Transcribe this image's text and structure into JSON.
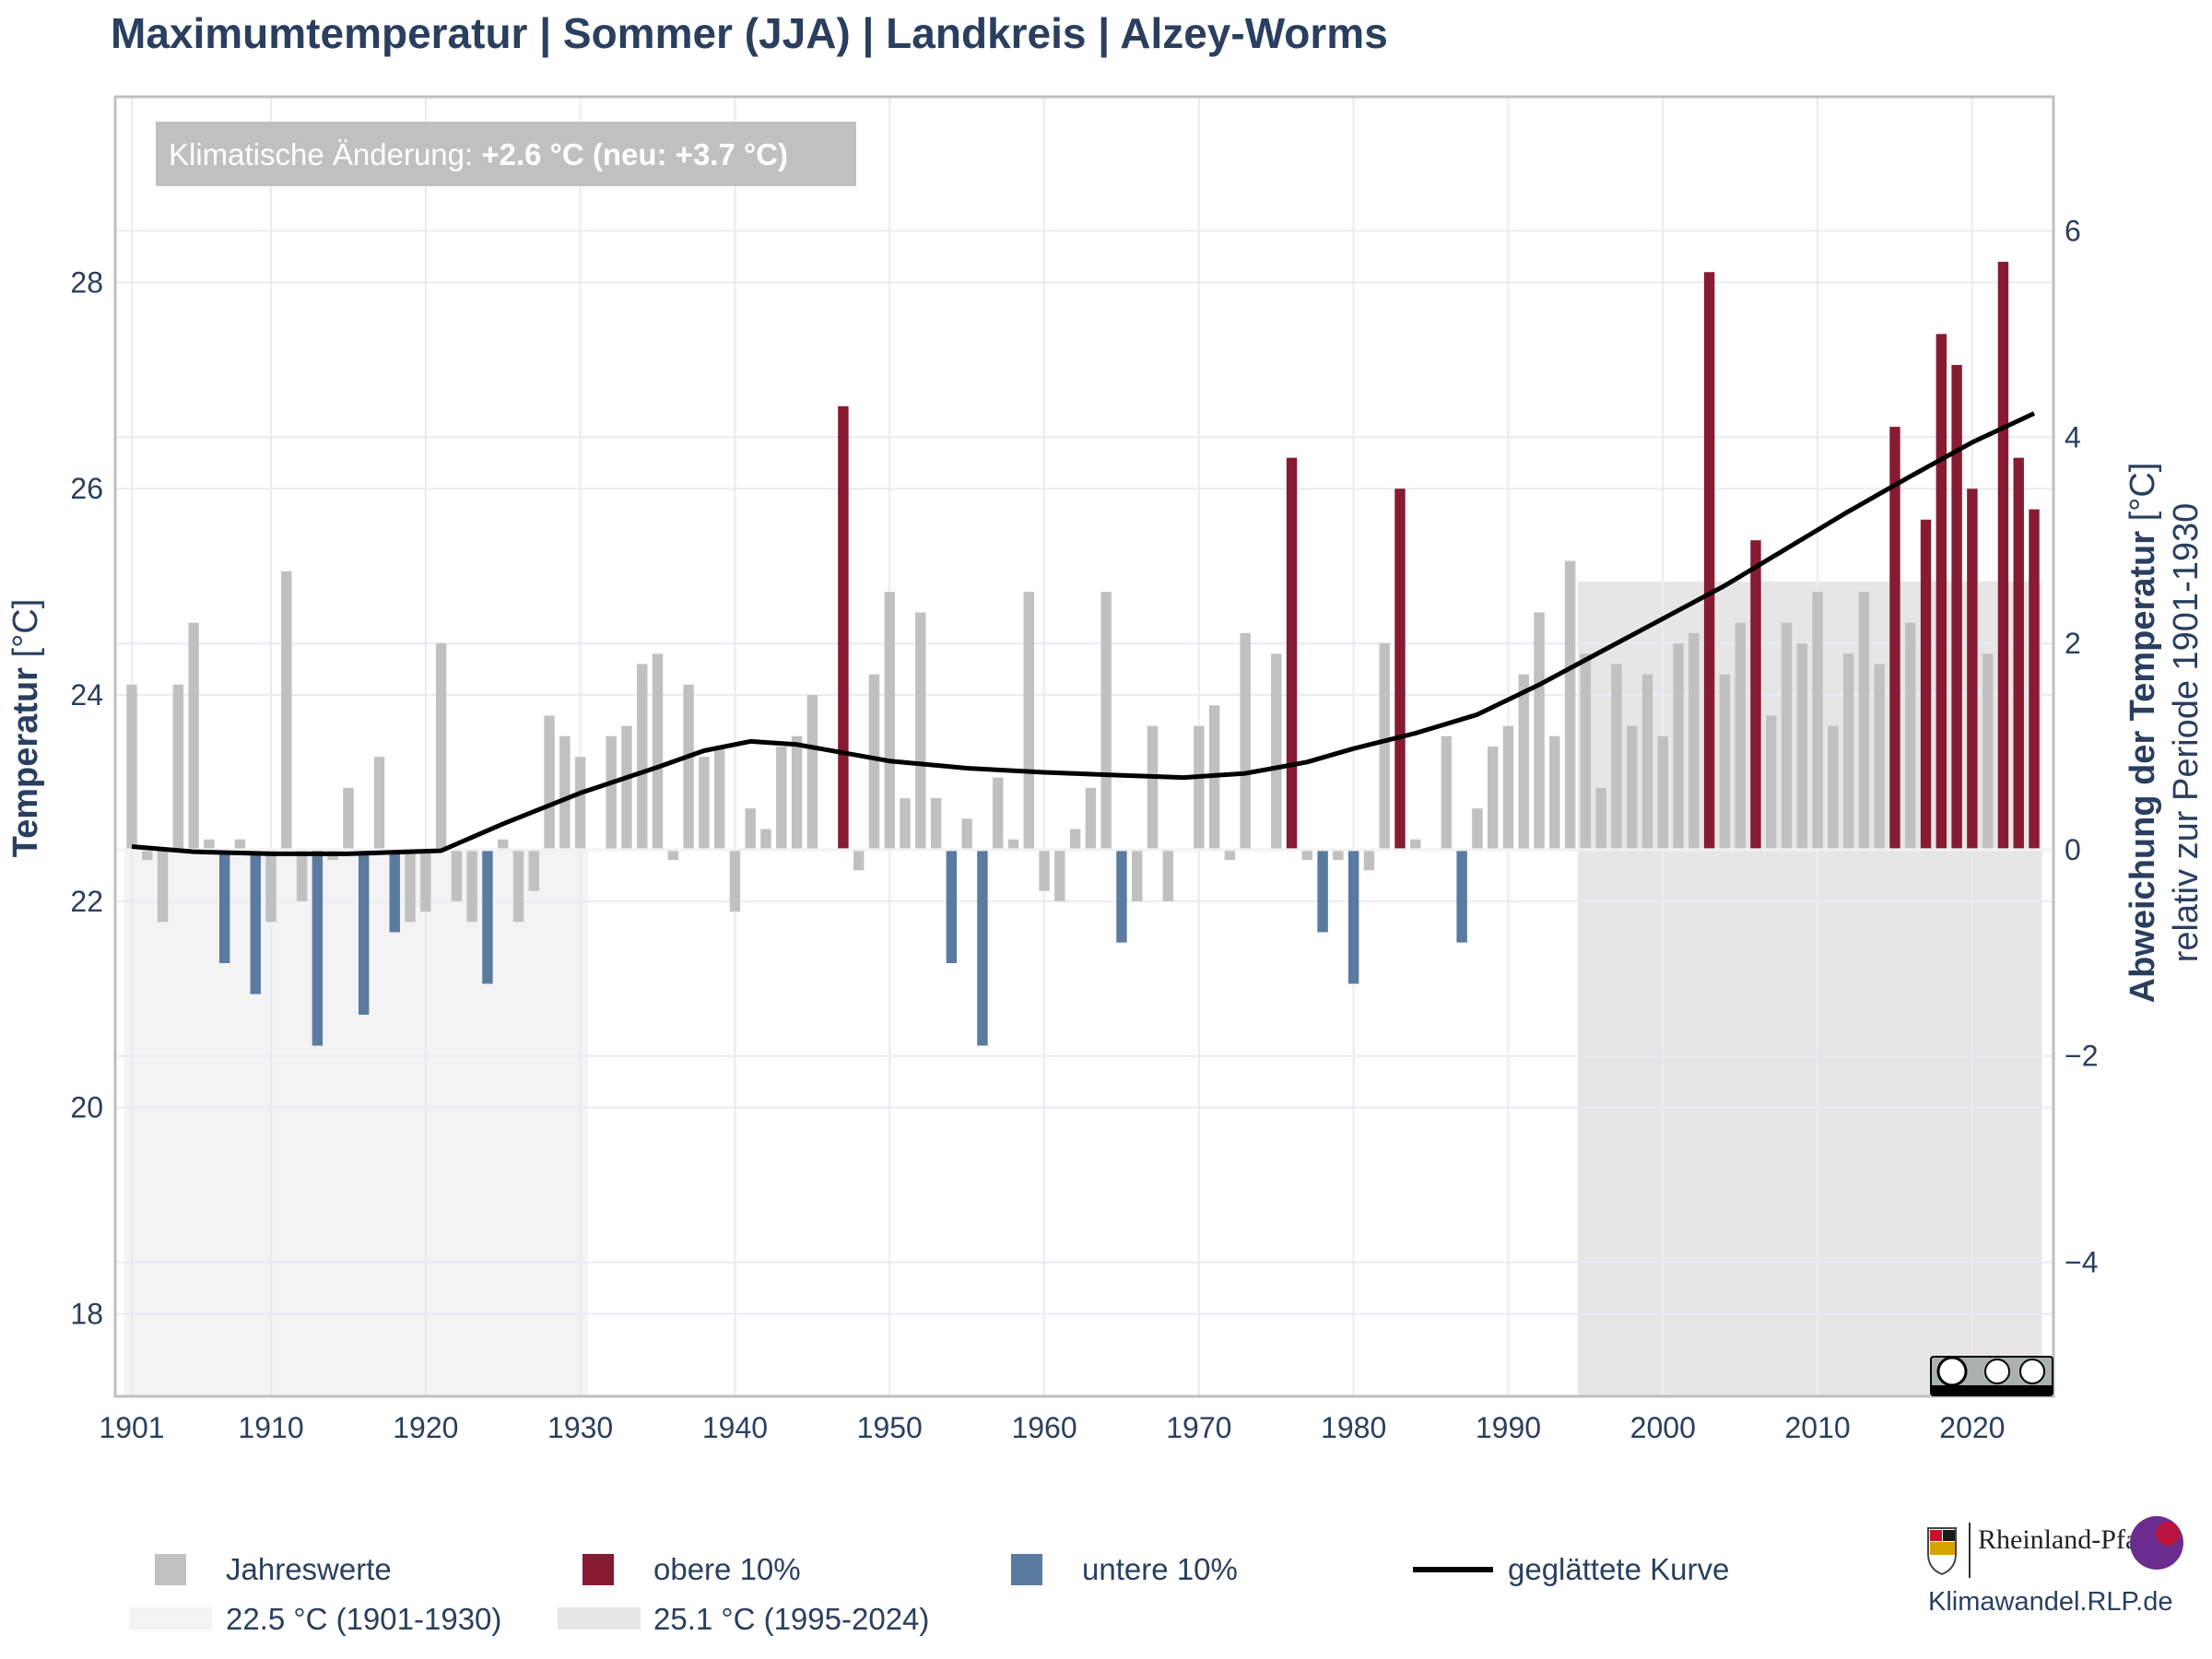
{
  "chart_data": {
    "type": "bar",
    "title": "Maximumtemperatur | Sommer (JJA) | Landkreis | Alzey-Worms",
    "annotation": {
      "prefix": "Klimatische Änderung: ",
      "value": "+2.6 °C (neu: +3.7 °C)"
    },
    "ylabel": "Temperatur",
    "ylabel_unit": " [°C]",
    "y2label": "Abweichung der Temperatur",
    "y2label_unit": " [°C]",
    "y2label_sub": "relativ zur Periode 1901-1930",
    "baseline": 22.5,
    "ylim": [
      17.2,
      29.8
    ],
    "xlim": [
      1900,
      2025
    ],
    "yticks": [
      18,
      20,
      22,
      24,
      26,
      28
    ],
    "y2ticks": [
      -4,
      -2,
      0,
      2,
      4,
      6
    ],
    "xticks": [
      1901,
      1910,
      1920,
      1930,
      1940,
      1950,
      1960,
      1970,
      1980,
      1990,
      2000,
      2010,
      2020
    ],
    "grid": true,
    "legend_position": "bottom",
    "reference_periods": [
      {
        "label": "22.5 °C (1901-1930)",
        "start": 1901,
        "end": 1930,
        "value": 22.5,
        "color": "#f3f3f3"
      },
      {
        "label": "25.1 °C (1995-2024)",
        "start": 1995,
        "end": 2024,
        "value": 25.1,
        "color": "#e6e6e6"
      }
    ],
    "legend": [
      {
        "label": "Jahreswerte",
        "color": "#c0c0c0",
        "kind": "square"
      },
      {
        "label": "obere 10%",
        "color": "#861b33",
        "kind": "square"
      },
      {
        "label": "untere 10%",
        "color": "#5a7aa0",
        "kind": "square"
      },
      {
        "label": "geglättete Kurve",
        "color": "#000000",
        "kind": "line"
      }
    ],
    "series": [
      {
        "kind": "bar",
        "start_year": 1901,
        "colors": {
          "normal": "#c0c0c0",
          "upper": "#861b33",
          "lower": "#5a7aa0"
        },
        "values": [
          24.1,
          22.4,
          21.8,
          24.1,
          24.7,
          22.6,
          21.4,
          22.6,
          21.1,
          21.8,
          25.2,
          22.0,
          20.6,
          22.4,
          23.1,
          20.9,
          23.4,
          21.7,
          21.8,
          21.9,
          24.5,
          22.0,
          21.8,
          21.2,
          22.6,
          21.8,
          22.1,
          23.8,
          23.6,
          23.4,
          22.5,
          23.6,
          23.7,
          24.3,
          24.4,
          22.4,
          24.1,
          23.4,
          23.5,
          21.9,
          22.9,
          22.7,
          23.5,
          23.6,
          24.0,
          22.5,
          26.8,
          22.3,
          24.2,
          25.0,
          23.0,
          24.8,
          23.0,
          21.4,
          22.8,
          20.6,
          23.2,
          22.6,
          25.0,
          22.1,
          22.0,
          22.7,
          23.1,
          25.0,
          21.6,
          22.0,
          23.7,
          22.0,
          22.5,
          23.7,
          23.9,
          22.4,
          24.6,
          22.5,
          24.4,
          26.3,
          22.4,
          21.7,
          22.4,
          21.2,
          22.3,
          24.5,
          26.0,
          22.6,
          22.5,
          23.6,
          21.6,
          22.9,
          23.5,
          23.7,
          24.2,
          24.8,
          23.6,
          25.3,
          24.4,
          23.1,
          24.3,
          23.7,
          24.2,
          23.6,
          24.5,
          24.6,
          28.1,
          24.2,
          24.7,
          25.5,
          23.8,
          24.7,
          24.5,
          25.0,
          23.7,
          24.4,
          25.0,
          24.3,
          26.6,
          24.7,
          25.7,
          27.5,
          27.2,
          26.0,
          24.4,
          28.2,
          26.3,
          25.8
        ],
        "upper_years": [
          1947,
          1976,
          1983,
          2003,
          2006,
          2015,
          2017,
          2018,
          2019,
          2020,
          2022,
          2023,
          2024
        ],
        "lower_years": [
          1907,
          1909,
          1913,
          1916,
          1918,
          1924,
          1954,
          1956,
          1965,
          1978,
          1980,
          1987
        ]
      },
      {
        "kind": "line",
        "name": "geglättete Kurve",
        "color": "#000000",
        "points": [
          [
            1901,
            22.53
          ],
          [
            1905,
            22.48
          ],
          [
            1910,
            22.46
          ],
          [
            1915,
            22.46
          ],
          [
            1921,
            22.49
          ],
          [
            1925,
            22.75
          ],
          [
            1930,
            23.05
          ],
          [
            1935,
            23.3
          ],
          [
            1938,
            23.46
          ],
          [
            1941,
            23.55
          ],
          [
            1944,
            23.52
          ],
          [
            1950,
            23.36
          ],
          [
            1955,
            23.29
          ],
          [
            1960,
            23.25
          ],
          [
            1965,
            23.22
          ],
          [
            1969,
            23.2
          ],
          [
            1973,
            23.24
          ],
          [
            1977,
            23.35
          ],
          [
            1980,
            23.48
          ],
          [
            1984,
            23.63
          ],
          [
            1988,
            23.81
          ],
          [
            1992,
            24.1
          ],
          [
            1996,
            24.42
          ],
          [
            2000,
            24.74
          ],
          [
            2004,
            25.06
          ],
          [
            2008,
            25.42
          ],
          [
            2012,
            25.78
          ],
          [
            2016,
            26.12
          ],
          [
            2020,
            26.45
          ],
          [
            2024,
            26.73
          ]
        ]
      }
    ]
  },
  "credit": {
    "logo_text": "Rheinland-Pfalz",
    "url": "Klimawandel.RLP.de"
  }
}
